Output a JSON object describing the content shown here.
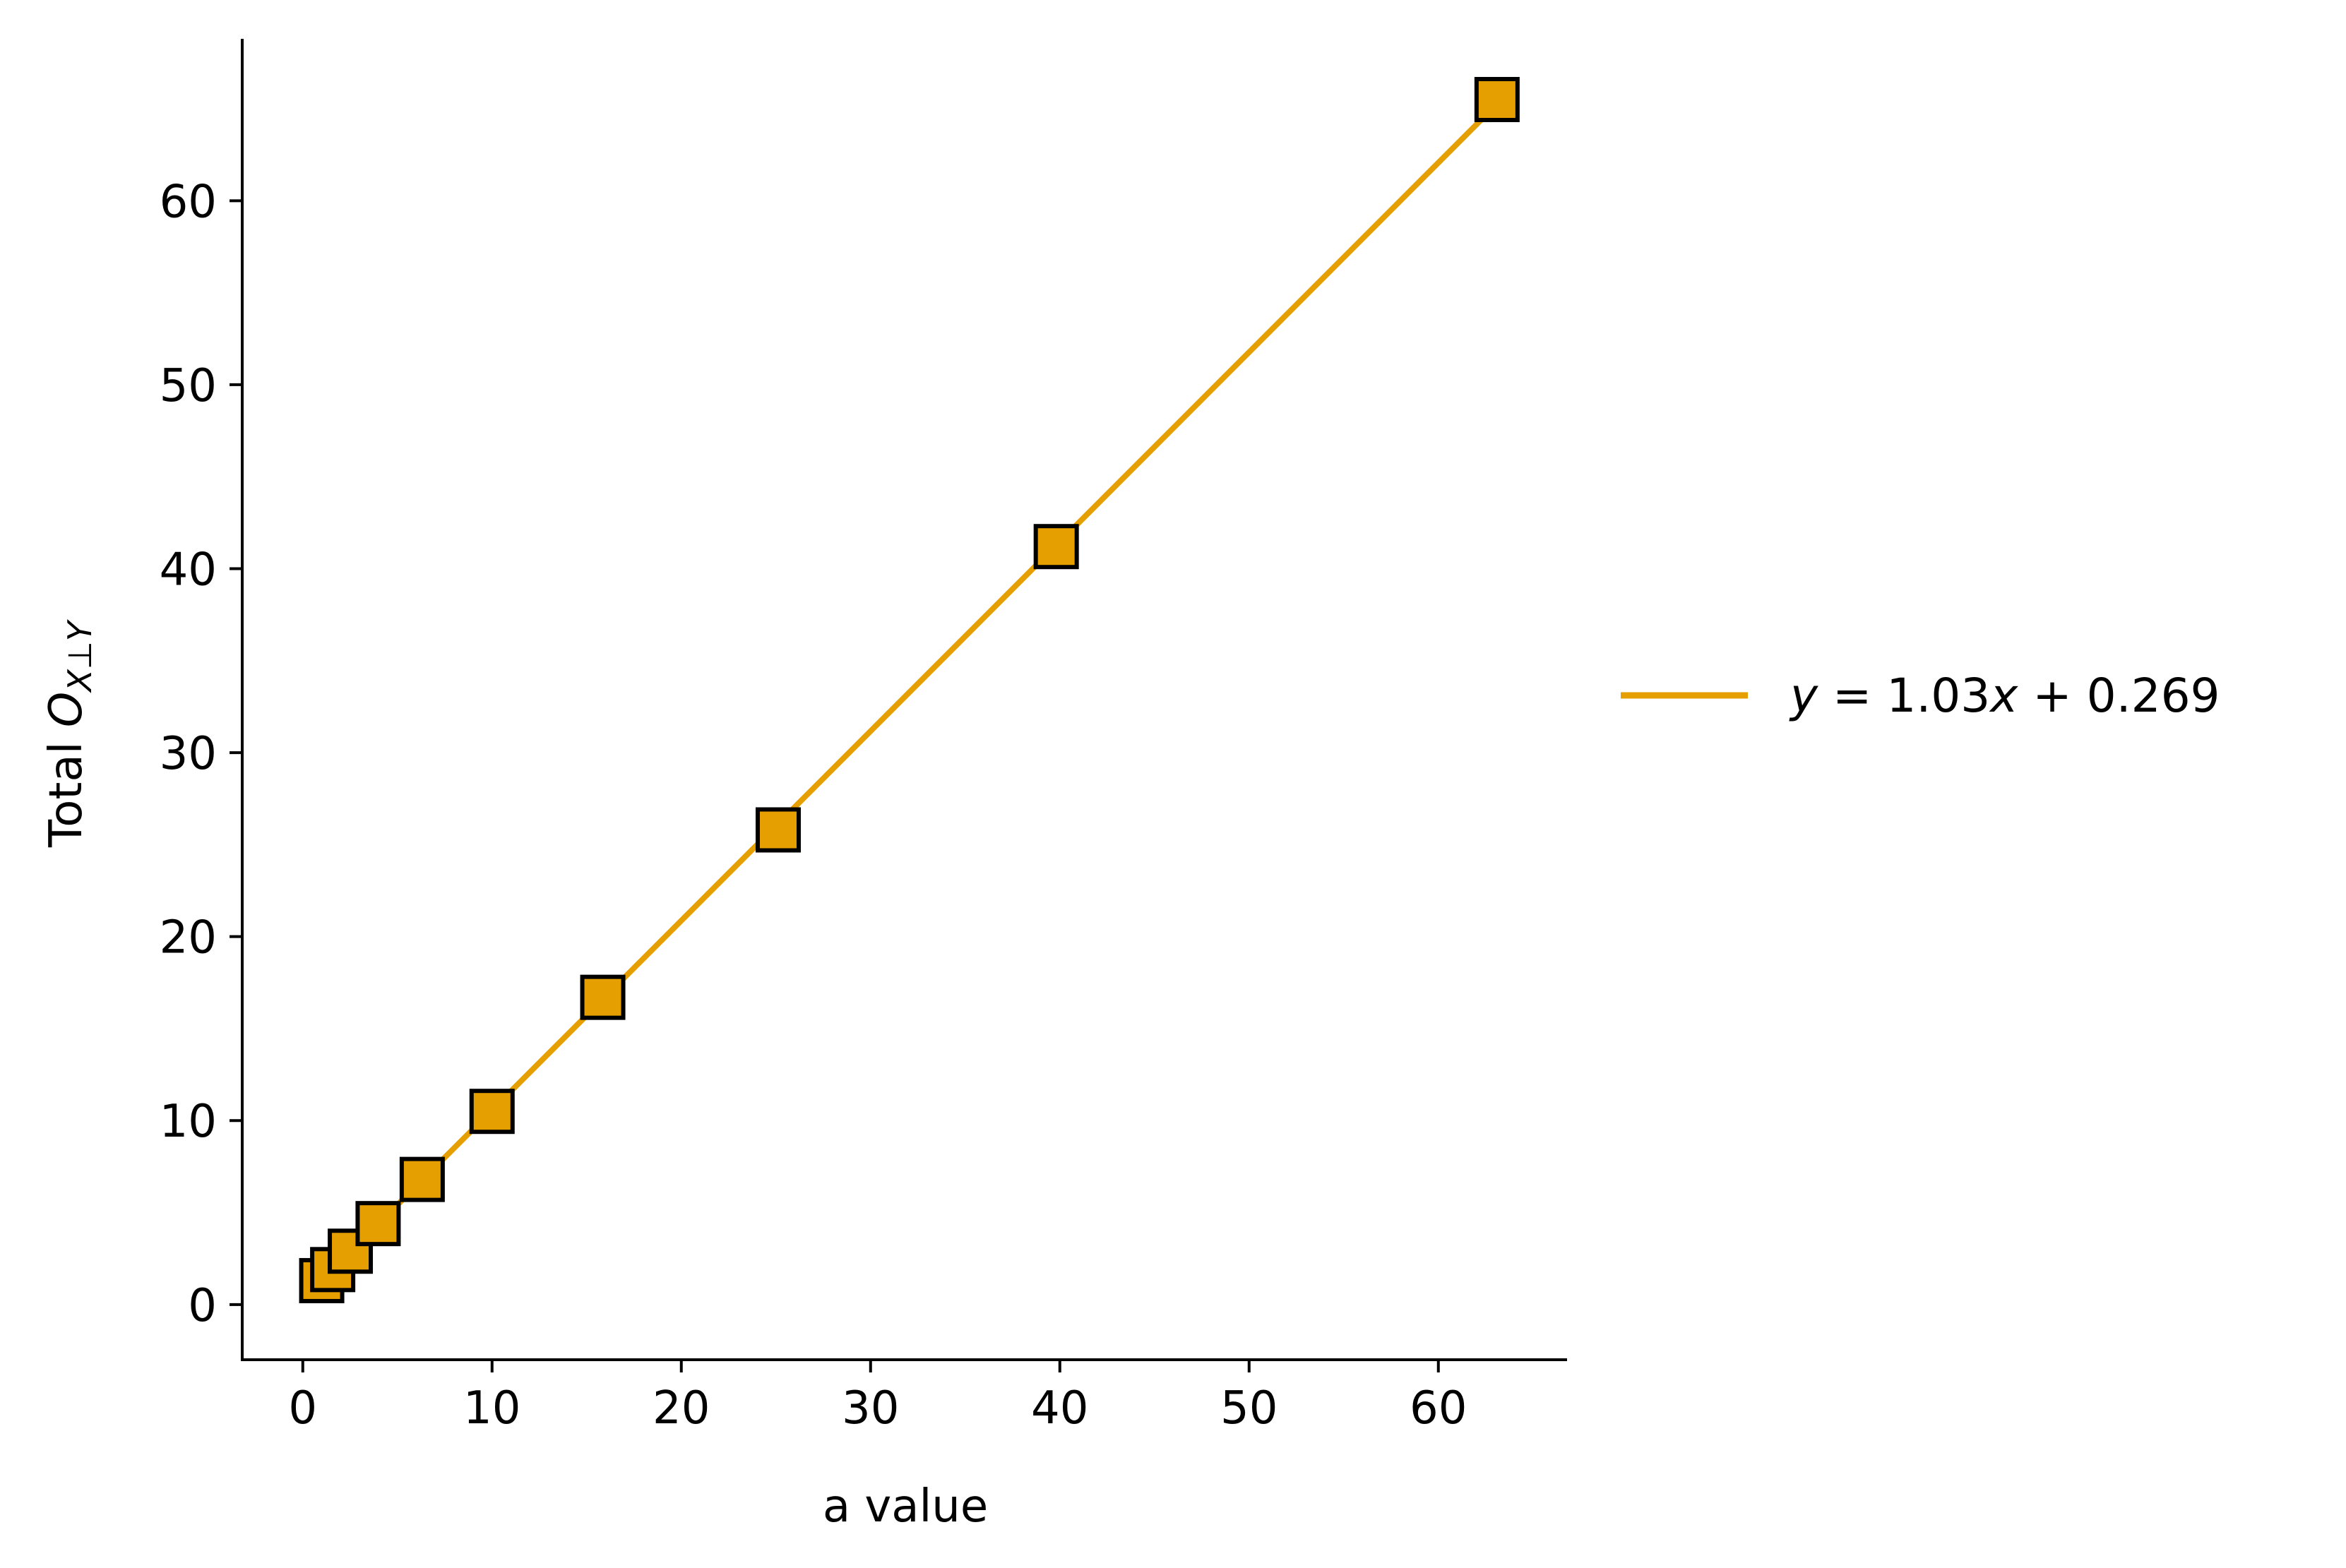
{
  "chart_data": {
    "type": "scatter",
    "title": "",
    "xlabel": "a value",
    "ylabel": {
      "prefix": "Total ",
      "main": "O",
      "sub": "X⊥Y"
    },
    "xlim": [
      -3.2,
      66.8
    ],
    "ylim": [
      -3.0,
      68.8
    ],
    "x_ticks": [
      0,
      10,
      20,
      30,
      40,
      50,
      60
    ],
    "y_ticks": [
      0,
      10,
      20,
      30,
      40,
      50,
      60
    ],
    "grid": false,
    "legend_position": "center-right-outside",
    "series": [
      {
        "kind": "markers",
        "marker": "square",
        "x": [
          1.0,
          1.58,
          2.51,
          3.98,
          6.31,
          10.0,
          15.85,
          25.12,
          39.81,
          63.1
        ],
        "y": [
          1.3,
          1.9,
          2.9,
          4.4,
          6.8,
          10.5,
          16.7,
          25.8,
          41.2,
          65.5
        ]
      },
      {
        "kind": "fit-line",
        "name": "y = 1.03x + 0.269",
        "slope": 1.03,
        "intercept": 0.269,
        "x_range": [
          0,
          63.1
        ]
      }
    ],
    "legend": {
      "label_parts": [
        "y",
        " = 1.03",
        "x",
        " + 0.269"
      ]
    },
    "colors": {
      "series": "#E69F00",
      "marker_edge": "#000000",
      "axis": "#000000"
    }
  }
}
